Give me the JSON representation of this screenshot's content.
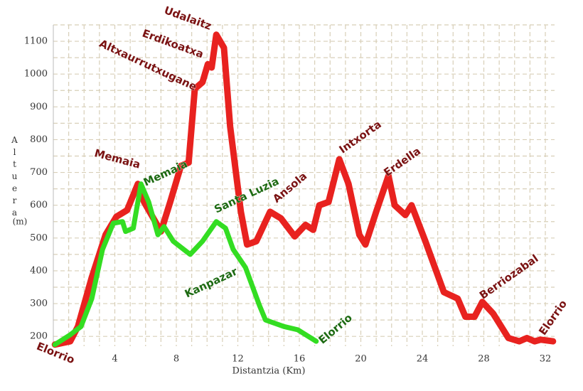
{
  "chart_data": {
    "type": "line",
    "x_label": "Distantzia (Km)",
    "y_label": "Altuera",
    "y_unit": "(m)",
    "xlim": [
      0,
      32.6
    ],
    "ylim": [
      170,
      1150
    ],
    "xticks": [
      4,
      8,
      12,
      16,
      20,
      24,
      28,
      32
    ],
    "yticks": [
      200,
      300,
      400,
      500,
      600,
      700,
      800,
      900,
      1000,
      1100
    ],
    "grid": true,
    "series": [
      {
        "color": "#e8221f",
        "x": [
          0.1,
          1.1,
          1.6,
          2.5,
          3.4,
          4.1,
          4.8,
          5.5,
          5.9,
          7.0,
          7.6,
          8.3,
          8.8,
          9.2,
          9.7,
          10.05,
          10.3,
          10.6,
          11.1,
          11.5,
          12.2,
          12.6,
          13.2,
          14.1,
          14.8,
          15.7,
          16.4,
          16.9,
          17.3,
          17.9,
          18.6,
          19.2,
          19.9,
          20.3,
          21.0,
          21.8,
          22.2,
          22.9,
          23.3,
          24.2,
          25.4,
          26.3,
          26.8,
          27.4,
          27.9,
          28.6,
          29.6,
          30.3,
          30.8,
          31.3,
          31.7,
          32.5
        ],
        "values": [
          175,
          185,
          230,
          380,
          510,
          565,
          585,
          665,
          610,
          520,
          610,
          720,
          730,
          955,
          975,
          1030,
          1020,
          1120,
          1080,
          840,
          580,
          480,
          490,
          580,
          560,
          505,
          540,
          525,
          600,
          610,
          740,
          665,
          510,
          480,
          580,
          690,
          600,
          570,
          600,
          490,
          335,
          315,
          260,
          260,
          305,
          270,
          195,
          185,
          195,
          185,
          190,
          185
        ]
      },
      {
        "color": "#33dd22",
        "x": [
          0.1,
          1.1,
          1.8,
          2.5,
          3.2,
          3.9,
          4.5,
          4.7,
          5.2,
          5.7,
          6.2,
          6.8,
          7.2,
          7.8,
          8.9,
          9.7,
          10.6,
          11.2,
          11.7,
          12.5,
          13.4,
          13.8,
          15.0,
          15.9,
          17.1
        ],
        "values": [
          175,
          205,
          230,
          315,
          465,
          545,
          550,
          520,
          530,
          665,
          610,
          510,
          535,
          490,
          450,
          490,
          550,
          530,
          465,
          410,
          295,
          250,
          230,
          220,
          185
        ]
      }
    ],
    "annotations": [
      {
        "text": "Elorrio",
        "series": 0
      },
      {
        "text": "Memaia",
        "series": 0
      },
      {
        "text": "Memaia",
        "series": 1
      },
      {
        "text": "Altxaurrutxugane",
        "series": 0
      },
      {
        "text": "Erdikoatxa",
        "series": 0
      },
      {
        "text": "Udalaitz",
        "series": 0
      },
      {
        "text": "Santa Luzia",
        "series": 1
      },
      {
        "text": "Kanpazar",
        "series": 1
      },
      {
        "text": "Ansola",
        "series": 0
      },
      {
        "text": "Intxorta",
        "series": 0
      },
      {
        "text": "Erdella",
        "series": 0
      },
      {
        "text": "Berriozabal",
        "series": 0
      },
      {
        "text": "Elorrio",
        "series": 1
      },
      {
        "text": "Elorrio",
        "series": 0
      }
    ]
  }
}
